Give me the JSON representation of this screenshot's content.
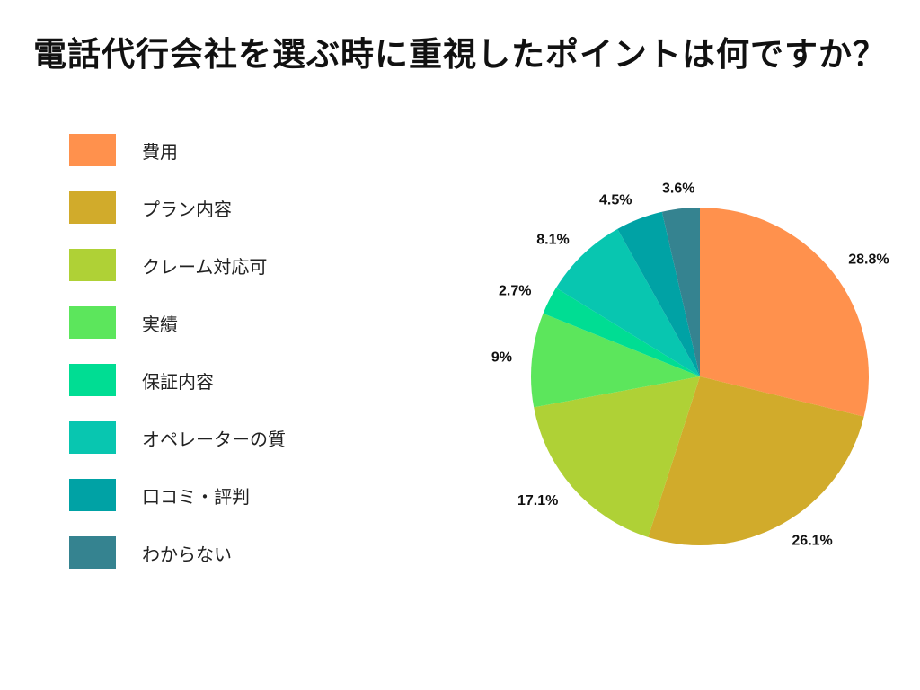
{
  "title": "電話代行会社を選ぶ時に重視したポイントは何ですか？",
  "chart_data": {
    "type": "pie",
    "title": "電話代行会社を選ぶ時に重視したポイントは何ですか？",
    "legend_position": "left",
    "categories": [
      "費用",
      "プラン内容",
      "クレーム対応可",
      "実績",
      "保証内容",
      "オペレーターの質",
      "口コミ・評判",
      "わからない"
    ],
    "values": [
      28.8,
      26.1,
      17.1,
      9,
      2.7,
      8.1,
      4.5,
      3.6
    ],
    "data_labels": [
      "28.8%",
      "26.1%",
      "17.1%",
      "9%",
      "2.7%",
      "8.1%",
      "4.5%",
      "3.6%"
    ],
    "colors": [
      "#FF914D",
      "#D1AB2B",
      "#AFD136",
      "#5CE65C",
      "#00DD93",
      "#08C6B0",
      "#00A2A5",
      "#358390"
    ]
  }
}
